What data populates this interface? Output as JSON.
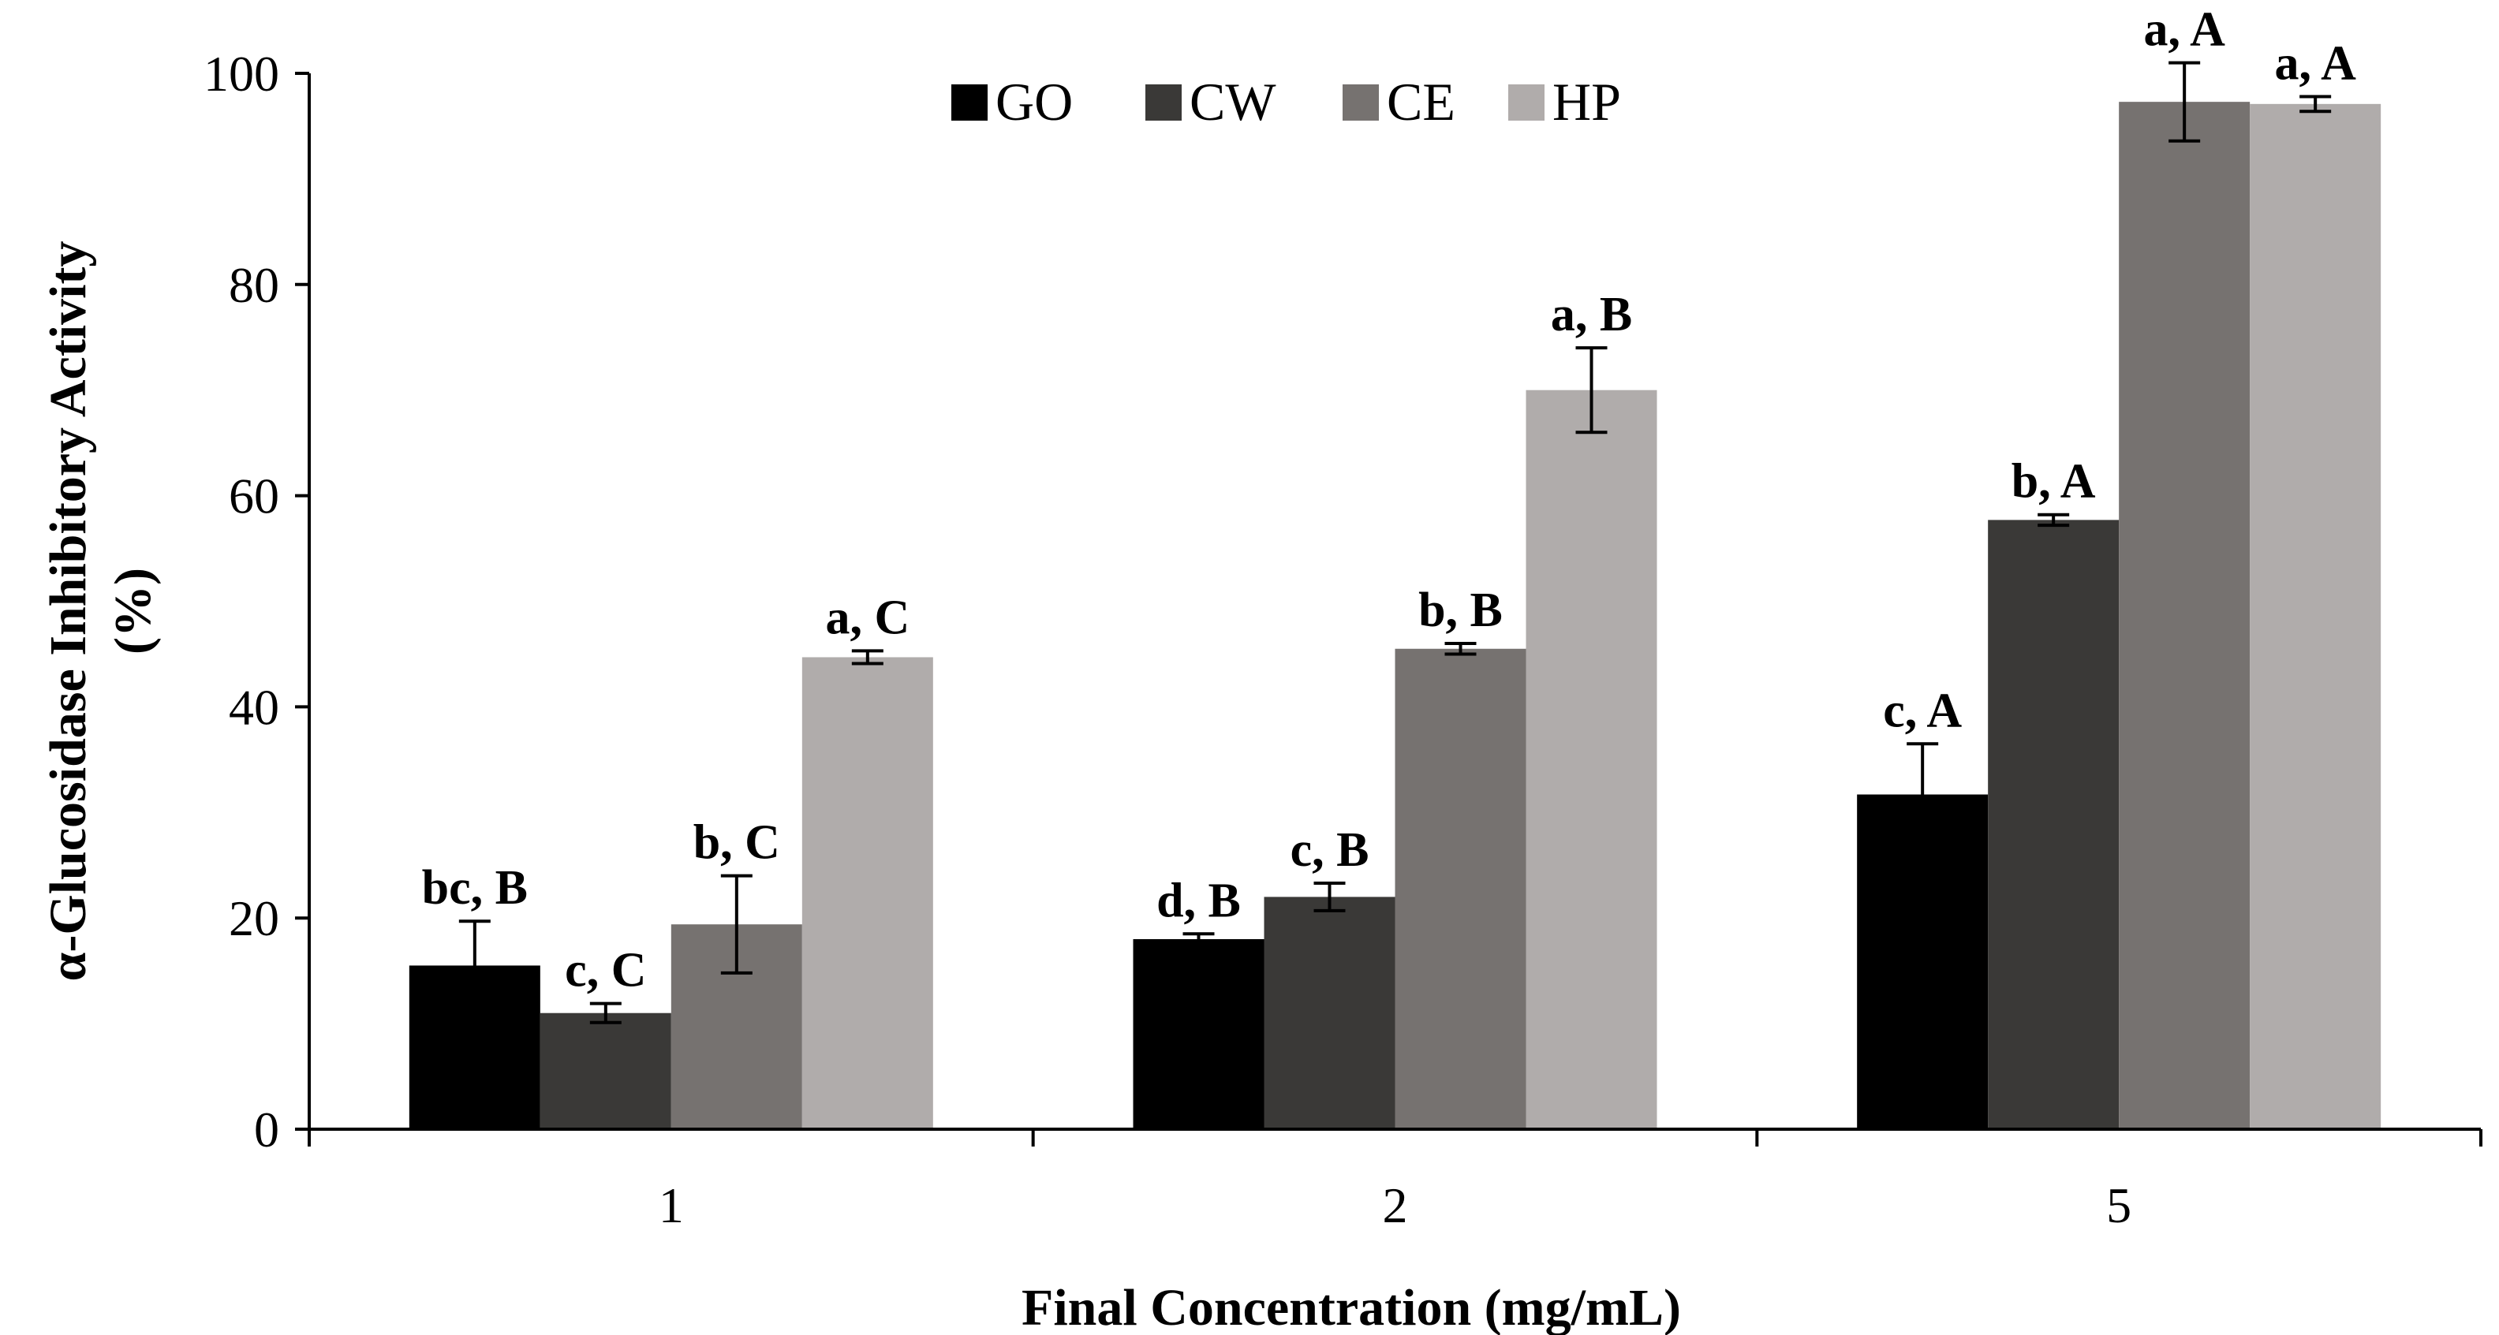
{
  "chart_data": {
    "type": "bar",
    "title": "",
    "xlabel": "Final Concentration (mg/mL)",
    "ylabel_line1": "α-Glucosidase Inhibitory Activity",
    "ylabel_line2": "(%)",
    "ylim": [
      0,
      100
    ],
    "yticks": [
      0,
      20,
      40,
      60,
      80,
      100
    ],
    "categories": [
      "1",
      "2",
      "5"
    ],
    "grid": false,
    "legend_position": "top-center",
    "series": [
      {
        "name": "GO",
        "color": "#000000",
        "values": [
          15.5,
          18.0,
          31.7
        ],
        "errors": [
          4.2,
          0.5,
          4.8
        ],
        "labels": [
          "bc, B",
          "d, B",
          "c, A"
        ]
      },
      {
        "name": "CW",
        "color": "#3a3937",
        "values": [
          11.0,
          22.0,
          57.7
        ],
        "errors": [
          0.9,
          1.3,
          0.5
        ],
        "labels": [
          "c, C",
          "c, B",
          "b, A"
        ]
      },
      {
        "name": "CE",
        "color": "#767270",
        "values": [
          19.4,
          45.5,
          97.3
        ],
        "errors": [
          4.6,
          0.5,
          3.7
        ],
        "labels": [
          "b, C",
          "b, B",
          "a, A"
        ]
      },
      {
        "name": "HP",
        "color": "#b0acab",
        "values": [
          44.7,
          70.0,
          97.1
        ],
        "errors": [
          0.6,
          4.0,
          0.7
        ],
        "labels": [
          "a, C",
          "a, B",
          "a, A"
        ]
      }
    ]
  }
}
